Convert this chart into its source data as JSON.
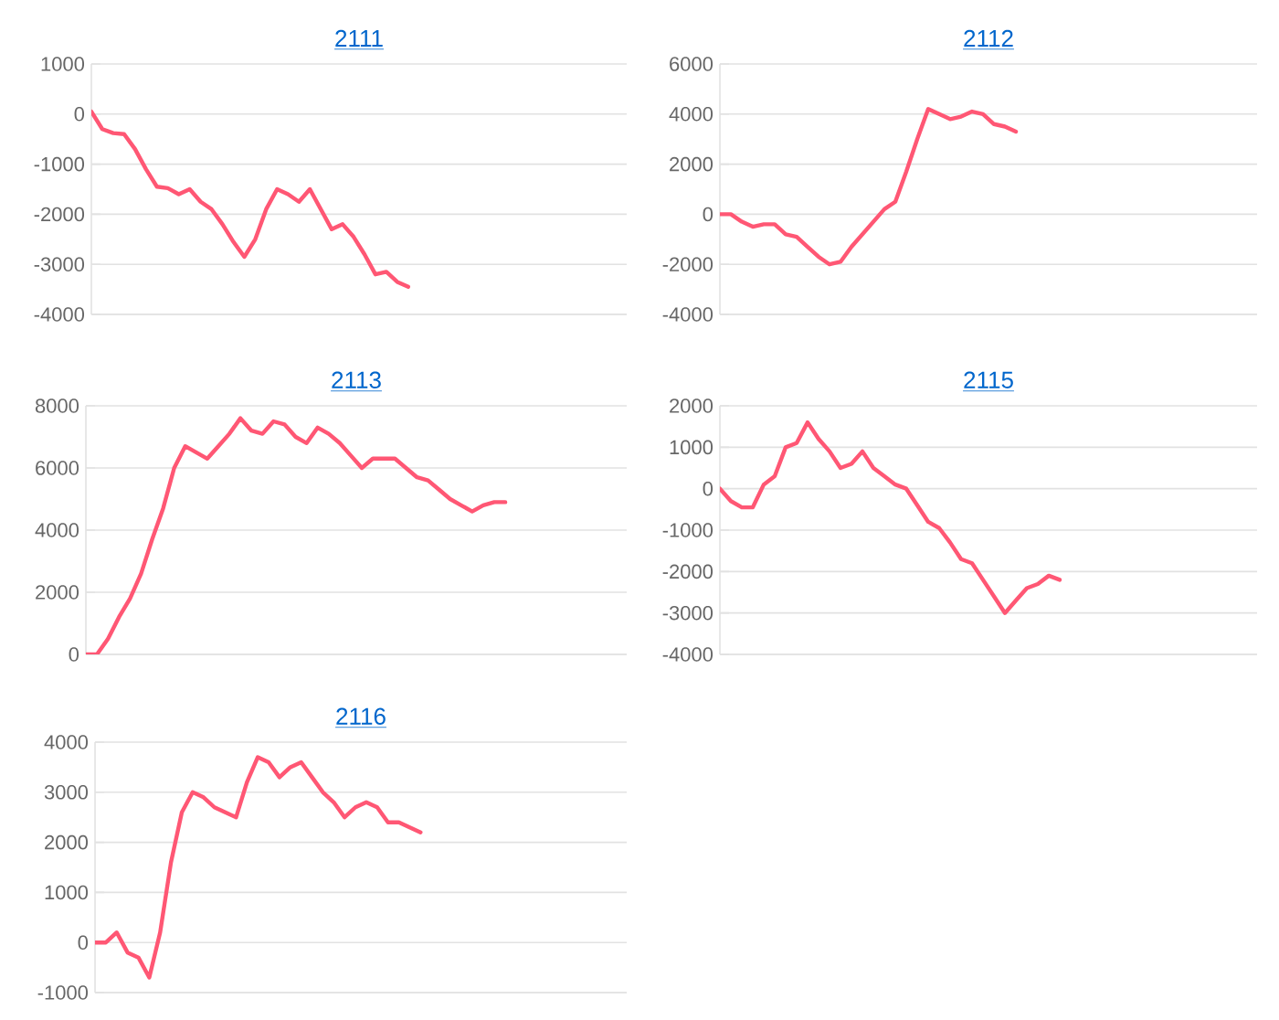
{
  "chart_data": [
    {
      "type": "line",
      "title": "2111",
      "tick_labels": "y",
      "grid": "y",
      "ylim": [
        -4000,
        1000
      ],
      "yticks": [
        -4000,
        -3000,
        -2000,
        -1000,
        0,
        1000
      ],
      "categories": [
        null,
        null,
        null,
        null,
        null,
        null,
        null,
        null,
        null,
        null,
        null,
        null,
        null,
        null,
        null,
        null,
        null,
        null,
        null,
        null,
        null,
        null,
        null,
        null,
        null,
        null,
        null,
        null,
        null,
        null,
        null,
        null,
        null,
        null,
        null,
        null,
        null,
        null,
        null,
        null,
        null,
        null,
        null,
        null,
        null,
        null,
        null,
        null,
        null,
        null
      ],
      "series": [
        {
          "color": "#ff5774",
          "values": [
            50,
            -300,
            -380,
            -400,
            -700,
            -1100,
            -1450,
            -1480,
            -1600,
            -1500,
            -1750,
            -1900,
            -2200,
            -2550,
            -2850,
            -2500,
            -1900,
            -1500,
            -1600,
            -1750,
            -1500,
            -1900,
            -2300,
            -2200,
            -2450,
            -2800,
            -3200,
            -3150,
            -3350,
            -3450,
            null,
            null,
            null,
            null,
            null,
            null,
            null,
            null,
            null,
            null,
            null,
            null,
            null,
            null,
            null,
            null,
            null,
            null,
            null,
            null
          ]
        }
      ]
    },
    {
      "type": "line",
      "title": "2112",
      "tick_labels": "y",
      "grid": "y",
      "ylim": [
        -4000,
        6000
      ],
      "yticks": [
        -4000,
        -2000,
        0,
        2000,
        4000,
        6000
      ],
      "categories": [
        null,
        null,
        null,
        null,
        null,
        null,
        null,
        null,
        null,
        null,
        null,
        null,
        null,
        null,
        null,
        null,
        null,
        null,
        null,
        null,
        null,
        null,
        null,
        null,
        null,
        null,
        null,
        null,
        null,
        null,
        null,
        null,
        null,
        null,
        null,
        null,
        null,
        null,
        null,
        null,
        null,
        null,
        null,
        null,
        null,
        null,
        null,
        null,
        null,
        null
      ],
      "series": [
        {
          "color": "#ff5774",
          "values": [
            0,
            0,
            -300,
            -500,
            -400,
            -400,
            -800,
            -900,
            -1300,
            -1700,
            -2000,
            -1900,
            -1300,
            -800,
            -300,
            200,
            500,
            1700,
            3000,
            4200,
            4000,
            3800,
            3900,
            4100,
            4000,
            3600,
            3500,
            3300,
            null,
            null,
            null,
            null,
            null,
            null,
            null,
            null,
            null,
            null,
            null,
            null,
            null,
            null,
            null,
            null,
            null,
            null,
            null,
            null,
            null,
            null
          ]
        }
      ]
    },
    {
      "type": "line",
      "title": "2113",
      "tick_labels": "y",
      "grid": "y",
      "ylim": [
        0,
        8000
      ],
      "yticks": [
        0,
        2000,
        4000,
        6000,
        8000
      ],
      "categories": [
        null,
        null,
        null,
        null,
        null,
        null,
        null,
        null,
        null,
        null,
        null,
        null,
        null,
        null,
        null,
        null,
        null,
        null,
        null,
        null,
        null,
        null,
        null,
        null,
        null,
        null,
        null,
        null,
        null,
        null,
        null,
        null,
        null,
        null,
        null,
        null,
        null,
        null,
        null,
        null,
        null,
        null,
        null,
        null,
        null,
        null,
        null,
        null,
        null,
        null
      ],
      "series": [
        {
          "color": "#ff5774",
          "values": [
            0,
            0,
            500,
            1200,
            1800,
            2600,
            3700,
            4700,
            6000,
            6700,
            6500,
            6300,
            6700,
            7100,
            7600,
            7200,
            7100,
            7500,
            7400,
            7000,
            6800,
            7300,
            7100,
            6800,
            6400,
            6000,
            6300,
            6300,
            6300,
            6000,
            5700,
            5600,
            5300,
            5000,
            4800,
            4600,
            4800,
            4900,
            4900,
            null,
            null,
            null,
            null,
            null,
            null,
            null,
            null,
            null,
            null,
            null
          ]
        }
      ]
    },
    {
      "type": "line",
      "title": "2115",
      "tick_labels": "y",
      "grid": "y",
      "ylim": [
        -4000,
        2000
      ],
      "yticks": [
        -4000,
        -3000,
        -2000,
        -1000,
        0,
        1000,
        2000
      ],
      "categories": [
        null,
        null,
        null,
        null,
        null,
        null,
        null,
        null,
        null,
        null,
        null,
        null,
        null,
        null,
        null,
        null,
        null,
        null,
        null,
        null,
        null,
        null,
        null,
        null,
        null,
        null,
        null,
        null,
        null,
        null,
        null,
        null,
        null,
        null,
        null,
        null,
        null,
        null,
        null,
        null,
        null,
        null,
        null,
        null,
        null,
        null,
        null,
        null,
        null,
        null
      ],
      "series": [
        {
          "color": "#ff5774",
          "values": [
            0,
            -300,
            -450,
            -450,
            100,
            300,
            1000,
            1100,
            1600,
            1200,
            900,
            500,
            600,
            900,
            500,
            300,
            100,
            0,
            -400,
            -800,
            -950,
            -1300,
            -1700,
            -1800,
            -2200,
            -2600,
            -3000,
            -2700,
            -2400,
            -2300,
            -2100,
            -2200,
            null,
            null,
            null,
            null,
            null,
            null,
            null,
            null,
            null,
            null,
            null,
            null,
            null,
            null,
            null,
            null,
            null,
            null
          ]
        }
      ]
    },
    {
      "type": "line",
      "title": "2116",
      "tick_labels": "y",
      "grid": "y",
      "ylim": [
        -1000,
        4000
      ],
      "yticks": [
        -1000,
        0,
        1000,
        2000,
        3000,
        4000
      ],
      "categories": [
        null,
        null,
        null,
        null,
        null,
        null,
        null,
        null,
        null,
        null,
        null,
        null,
        null,
        null,
        null,
        null,
        null,
        null,
        null,
        null,
        null,
        null,
        null,
        null,
        null,
        null,
        null,
        null,
        null,
        null,
        null,
        null,
        null,
        null,
        null,
        null,
        null,
        null,
        null,
        null,
        null,
        null,
        null,
        null,
        null,
        null,
        null,
        null,
        null,
        null
      ],
      "series": [
        {
          "color": "#ff5774",
          "values": [
            0,
            0,
            200,
            -200,
            -300,
            -700,
            200,
            1600,
            2600,
            3000,
            2900,
            2700,
            2600,
            2500,
            3200,
            3700,
            3600,
            3300,
            3500,
            3600,
            3300,
            3000,
            2800,
            2500,
            2700,
            2800,
            2700,
            2400,
            2400,
            2300,
            2200,
            null,
            null,
            null,
            null,
            null,
            null,
            null,
            null,
            null,
            null,
            null,
            null,
            null,
            null,
            null,
            null,
            null,
            null,
            null
          ]
        }
      ]
    }
  ]
}
